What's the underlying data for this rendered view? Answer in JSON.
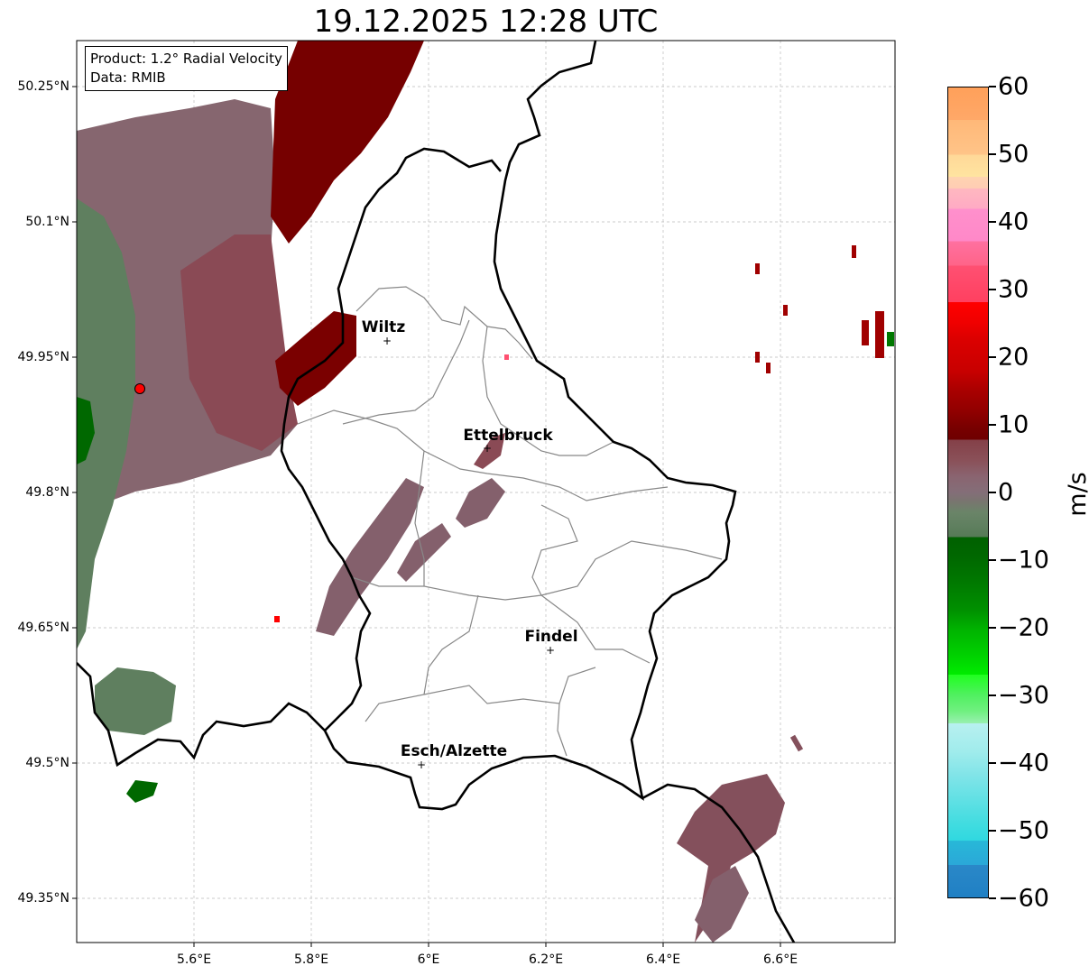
{
  "title": "19.12.2025 12:28 UTC",
  "info_box": {
    "product": "Product: 1.2° Radial Velocity",
    "data": "Data: RMIB"
  },
  "axes": {
    "lon_ticks": [
      "5.6°E",
      "5.8°E",
      "6°E",
      "6.2°E",
      "6.4°E",
      "6.6°E"
    ],
    "lat_ticks": [
      "50.25°N",
      "50.1°N",
      "49.95°N",
      "49.8°N",
      "49.65°N",
      "49.5°N",
      "49.35°N"
    ],
    "lon_range": [
      5.4,
      6.8
    ],
    "lat_range": [
      49.3,
      50.3
    ]
  },
  "cities": [
    {
      "name": "Wiltz",
      "lon": 5.93,
      "lat": 49.967
    },
    {
      "name": "Ettelbruck",
      "lon": 6.1,
      "lat": 49.847
    },
    {
      "name": "Findel",
      "lon": 6.21,
      "lat": 49.626
    },
    {
      "name": "Esch/Alzette",
      "lon": 5.99,
      "lat": 49.497
    }
  ],
  "radar_site": {
    "lon": 5.505,
    "lat": 49.915,
    "color": "#ff0000"
  },
  "colorbar": {
    "unit": "m/s",
    "ticks": [
      "60",
      "50",
      "40",
      "30",
      "20",
      "10",
      "0",
      "−10",
      "−20",
      "−30",
      "−40",
      "−50",
      "−60"
    ],
    "range": [
      -60,
      60
    ]
  }
}
